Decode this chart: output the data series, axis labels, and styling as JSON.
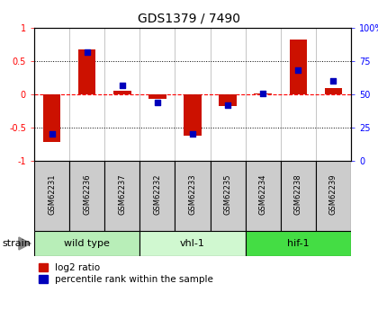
{
  "title": "GDS1379 / 7490",
  "samples": [
    "GSM62231",
    "GSM62236",
    "GSM62237",
    "GSM62232",
    "GSM62233",
    "GSM62235",
    "GSM62234",
    "GSM62238",
    "GSM62239"
  ],
  "log2_ratio": [
    -0.72,
    0.68,
    0.05,
    -0.07,
    -0.62,
    -0.18,
    0.02,
    0.82,
    0.1
  ],
  "percentile": [
    20,
    82,
    57,
    44,
    20,
    42,
    51,
    68,
    60
  ],
  "groups": [
    {
      "label": "wild type",
      "start": 0,
      "end": 3,
      "color": "#b8eeb8"
    },
    {
      "label": "vhl-1",
      "start": 3,
      "end": 6,
      "color": "#d0f8d0"
    },
    {
      "label": "hif-1",
      "start": 6,
      "end": 9,
      "color": "#44dd44"
    }
  ],
  "ylim_left": [
    -1,
    1
  ],
  "ylim_right": [
    0,
    100
  ],
  "yticks_left": [
    -1,
    -0.5,
    0,
    0.5,
    1
  ],
  "ytick_labels_left": [
    "-1",
    "-0.5",
    "0",
    "0.5",
    "1"
  ],
  "yticks_right": [
    0,
    25,
    50,
    75,
    100
  ],
  "ytick_labels_right": [
    "0",
    "25",
    "50",
    "75",
    "100%"
  ],
  "bar_color": "#cc1100",
  "dot_color": "#0000bb",
  "bar_width": 0.5,
  "legend_labels": [
    "log2 ratio",
    "percentile rank within the sample"
  ],
  "strain_label": "strain",
  "sample_box_color": "#cccccc",
  "plot_bg": "#ffffff"
}
